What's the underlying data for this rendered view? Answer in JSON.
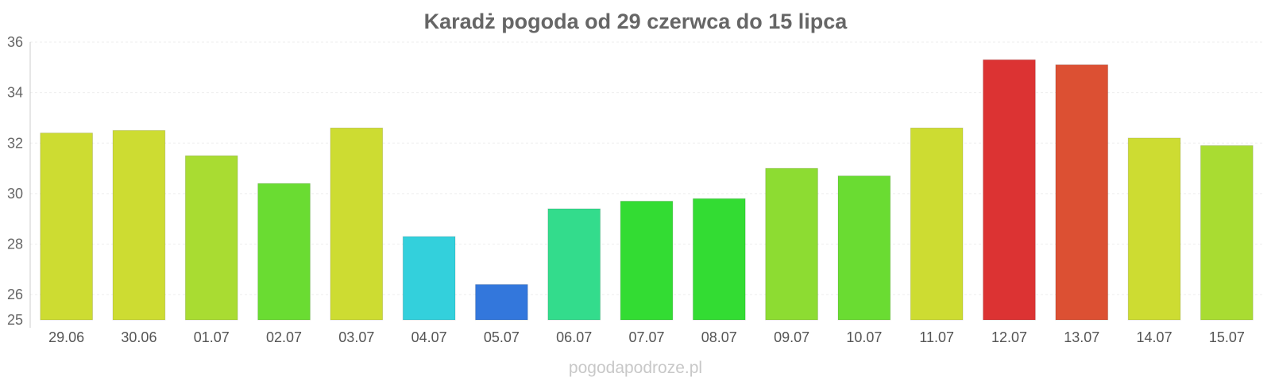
{
  "chart_data": {
    "type": "bar",
    "title": "Karadż pogoda od 29 czerwca do 15 lipca",
    "source": "pogodapodroze.pl",
    "categories": [
      "29.06",
      "30.06",
      "01.07",
      "02.07",
      "03.07",
      "04.07",
      "05.07",
      "06.07",
      "07.07",
      "08.07",
      "09.07",
      "10.07",
      "11.07",
      "12.07",
      "13.07",
      "14.07",
      "15.07"
    ],
    "values": [
      32.4,
      32.5,
      31.5,
      30.4,
      32.6,
      28.3,
      26.4,
      29.4,
      29.7,
      29.8,
      31.0,
      30.7,
      32.6,
      35.3,
      35.1,
      32.2,
      31.9
    ],
    "colors": [
      "#cddc32",
      "#cddc32",
      "#a9dc32",
      "#6adc32",
      "#cddc32",
      "#33d0dc",
      "#3377dc",
      "#33dc8c",
      "#33dc33",
      "#33dc33",
      "#8ddc32",
      "#6adc32",
      "#cddc32",
      "#dc3333",
      "#dc5033",
      "#cddc32",
      "#a9dc32"
    ],
    "yticks": [
      25,
      26,
      28,
      30,
      32,
      34,
      36
    ],
    "ylim": [
      25,
      36
    ],
    "grid": true,
    "legend": "none"
  }
}
